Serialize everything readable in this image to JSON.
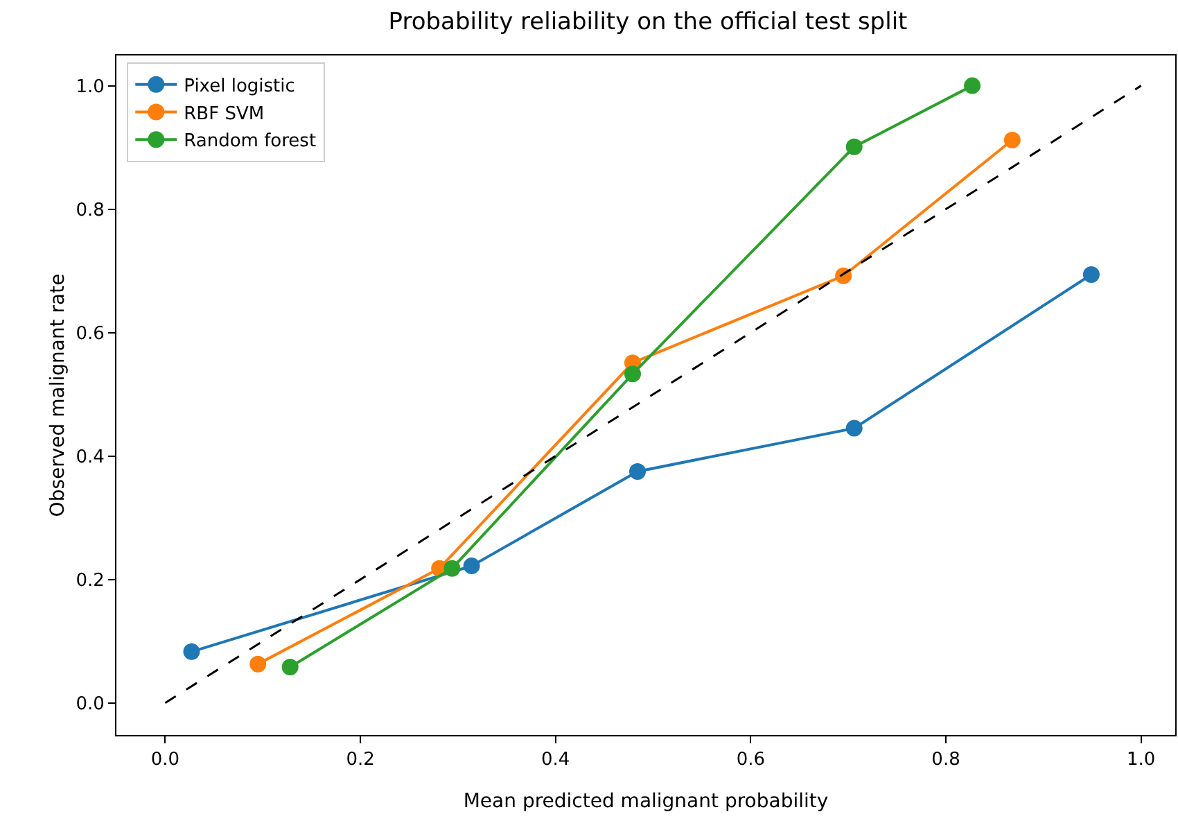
{
  "chart_data": {
    "type": "line",
    "title": "Probability reliability on the official test split",
    "xlabel": "Mean predicted malignant probability",
    "ylabel": "Observed malignant rate",
    "xlim": [
      -0.05,
      1.035
    ],
    "ylim": [
      -0.052,
      1.049
    ],
    "xticks": [
      {
        "value": 0,
        "label": "0.0"
      },
      0.2,
      0.4,
      0.6,
      0.8,
      {
        "value": 1,
        "label": "1.0"
      }
    ],
    "yticks": [
      {
        "value": 0,
        "label": "0.0"
      },
      0.2,
      0.4,
      0.6,
      0.8,
      {
        "value": 1,
        "label": "1.0"
      }
    ],
    "grid": false,
    "legend": "top left",
    "marker": "circle",
    "line_style": "solid",
    "series": [
      {
        "name": "Pixel logistic",
        "color": "#1f77b4",
        "x": [
          0.027,
          0.314,
          0.484,
          0.706,
          0.949
        ],
        "values": [
          0.083,
          0.222,
          0.375,
          0.445,
          0.694
        ]
      },
      {
        "name": "RBF SVM",
        "color": "#ff7f0e",
        "x": [
          0.095,
          0.281,
          0.479,
          0.695,
          0.868
        ],
        "values": [
          0.063,
          0.218,
          0.551,
          0.692,
          0.912
        ]
      },
      {
        "name": "Random forest",
        "color": "#2ca02c",
        "x": [
          0.128,
          0.294,
          0.479,
          0.706,
          0.827
        ],
        "values": [
          0.058,
          0.218,
          0.533,
          0.901,
          1.0
        ]
      },
      {
        "color": "#000000",
        "x": [
          0,
          1
        ],
        "values": [
          0,
          1
        ],
        "line_style": "dashed",
        "marker": "none"
      }
    ]
  }
}
